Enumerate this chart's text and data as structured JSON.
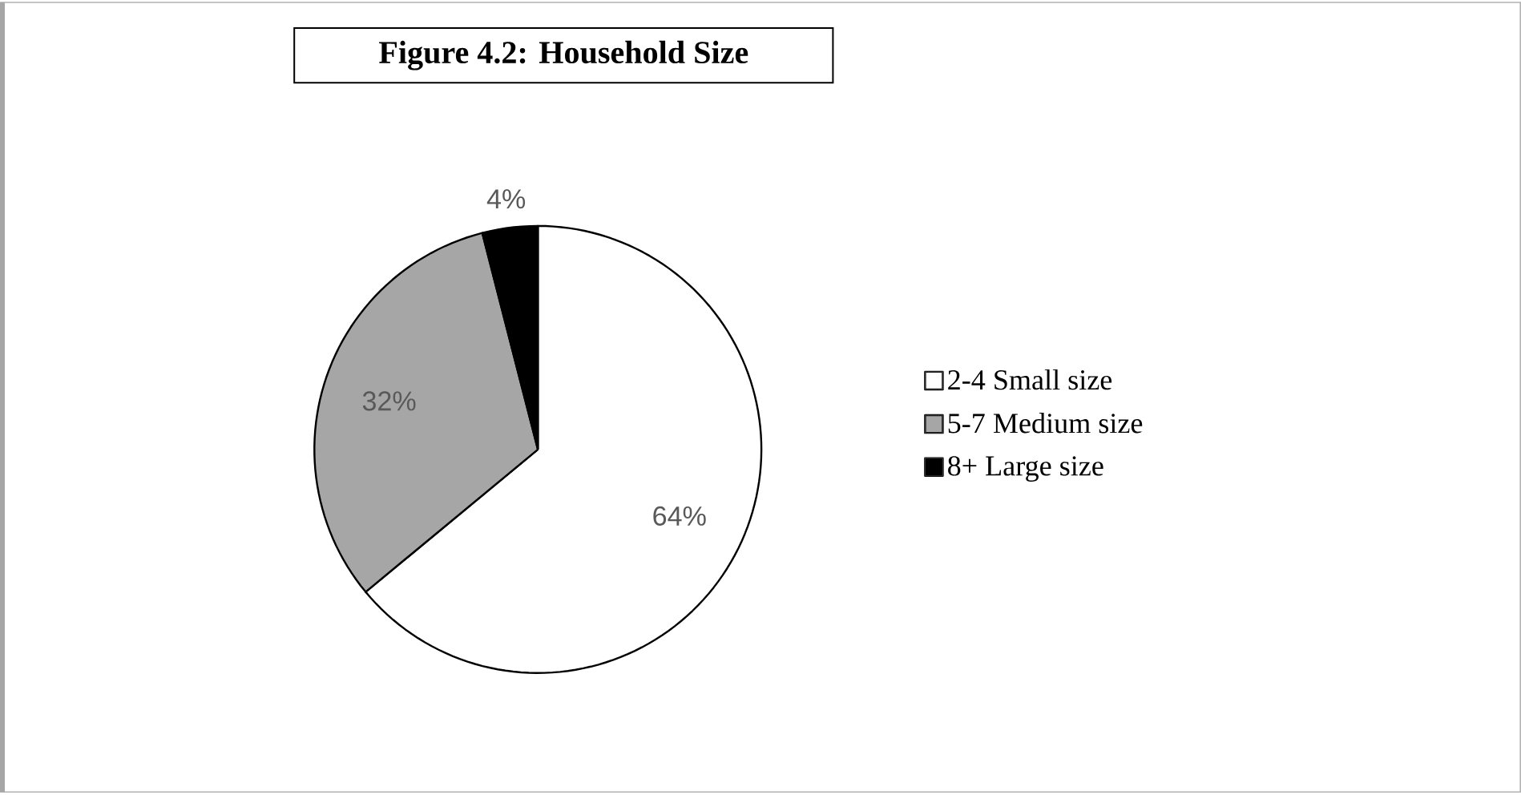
{
  "chart_data": {
    "type": "pie",
    "title": "Figure 4.2: Household Size",
    "categories": [
      "2-4 Small size",
      "5-7 Medium size",
      "8+ Large size"
    ],
    "values": [
      64,
      32,
      4
    ],
    "value_labels": [
      "64%",
      "32%",
      "4%"
    ],
    "colors": [
      "#ffffff",
      "#a6a6a6",
      "#000000"
    ],
    "legend": "right"
  }
}
